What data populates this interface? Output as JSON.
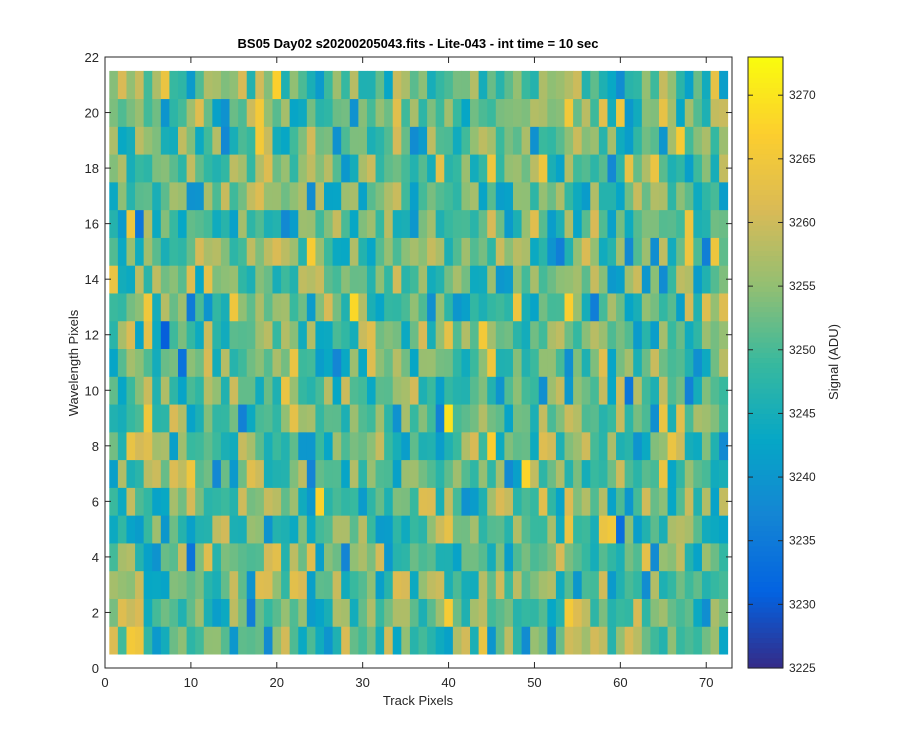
{
  "chart_data": {
    "type": "heatmap",
    "title": "BS05 Day02  s20200205043.fits - Lite-043 - int time = 10 sec",
    "xlabel": "Track Pixels",
    "ylabel": "Wavelength Pixels",
    "xlim": [
      0,
      73
    ],
    "ylim": [
      0,
      22
    ],
    "x_ticks": [
      "0",
      "10",
      "20",
      "30",
      "40",
      "50",
      "60",
      "70"
    ],
    "y_ticks": [
      "0",
      "2",
      "4",
      "6",
      "8",
      "10",
      "12",
      "14",
      "16",
      "18",
      "20",
      "22"
    ],
    "x_cells": [
      1,
      72
    ],
    "y_cells": [
      1,
      21
    ],
    "color_range": [
      3225,
      3273
    ],
    "colormap": "parula",
    "colorbar": {
      "label": "Signal (ADU)",
      "ticks": [
        "3225",
        "3230",
        "3235",
        "3240",
        "3245",
        "3250",
        "3255",
        "3260",
        "3265",
        "3270"
      ]
    },
    "grid": false,
    "note_values": "Per-pixel signal values not individually readable; pattern is random noise around ~3250 ADU"
  },
  "colors": {
    "axis": "#262626",
    "parula": [
      "#352a87",
      "#0363e1",
      "#1485d4",
      "#06a7c6",
      "#38b99e",
      "#92bf73",
      "#d9ba56",
      "#fcce2e",
      "#f9fb0e"
    ]
  }
}
